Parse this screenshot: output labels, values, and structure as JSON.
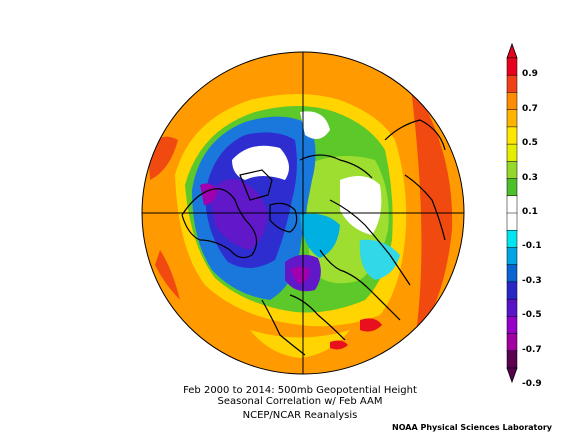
{
  "caption": {
    "line1": "Feb 2000 to 2014: 500mb Geopotential Height",
    "line2": "Seasonal Correlation w/ Feb AAM",
    "line3": "NCEP/NCAR Reanalysis"
  },
  "credit": "NOAA Physical Sciences Laboratory",
  "colorbar": {
    "labels": [
      "0.9",
      "0.7",
      "0.5",
      "0.3",
      "0.1",
      "-0.1",
      "-0.3",
      "-0.5",
      "-0.7",
      "-0.9"
    ],
    "colors": [
      "#e8001f",
      "#f2401a",
      "#ff8c00",
      "#ffb400",
      "#ffe600",
      "#e6ee00",
      "#94d92a",
      "#4cc02a",
      "#ffffff",
      "#ffffff",
      "#00e5f0",
      "#00a5e6",
      "#0a64d2",
      "#2828c8",
      "#5a14c8",
      "#9600c8",
      "#a000a0",
      "#5a0050"
    ]
  }
}
